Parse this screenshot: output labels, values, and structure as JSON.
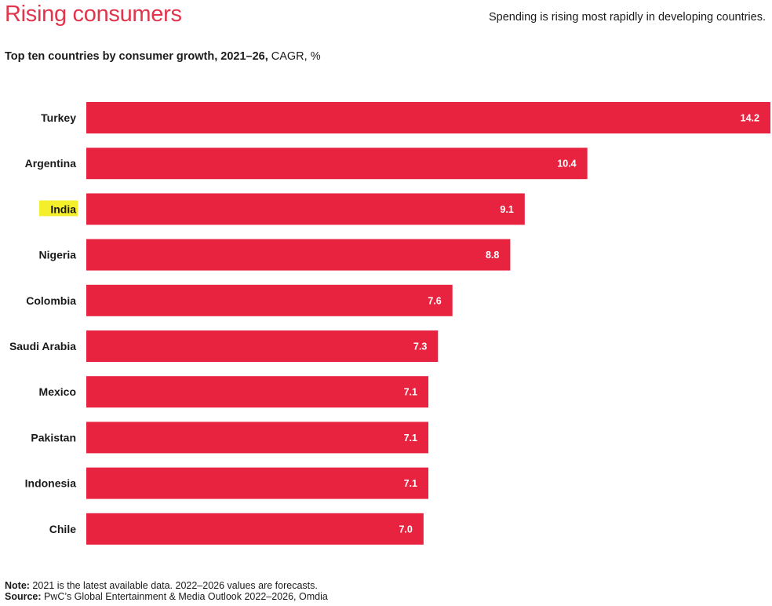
{
  "header": {
    "title": "Rising consumers",
    "kicker": "Spending is rising most rapidly in developing countries."
  },
  "subtitle": {
    "bold": "Top ten countries by consumer growth, 2021–26,",
    "rest": " CAGR, %"
  },
  "chart_data": {
    "type": "bar",
    "orientation": "horizontal",
    "title": "Top ten countries by consumer growth, 2021–26, CAGR, %",
    "categories": [
      "Turkey",
      "Argentina",
      "India",
      "Nigeria",
      "Colombia",
      "Saudi Arabia",
      "Mexico",
      "Pakistan",
      "Indonesia",
      "Chile"
    ],
    "values": [
      14.2,
      10.4,
      9.1,
      8.8,
      7.6,
      7.3,
      7.1,
      7.1,
      7.1,
      7.0
    ],
    "value_labels": [
      "14.2",
      "10.4",
      "9.1",
      "8.8",
      "7.6",
      "7.3",
      "7.1",
      "7.1",
      "7.1",
      "7.0"
    ],
    "highlighted_category": "India",
    "bar_color": "#e8233f",
    "highlight_color": "#f4ef2a",
    "xlim": [
      0,
      14.2
    ],
    "grid": false,
    "xaxis_visible": false
  },
  "footer": {
    "note_label": "Note:",
    "note_text": " 2021 is the latest available data. 2022–2026 values are forecasts.",
    "source_label": "Source:",
    "source_text": " PwC’s Global Entertainment & Media Outlook 2022–2026, Omdia"
  }
}
